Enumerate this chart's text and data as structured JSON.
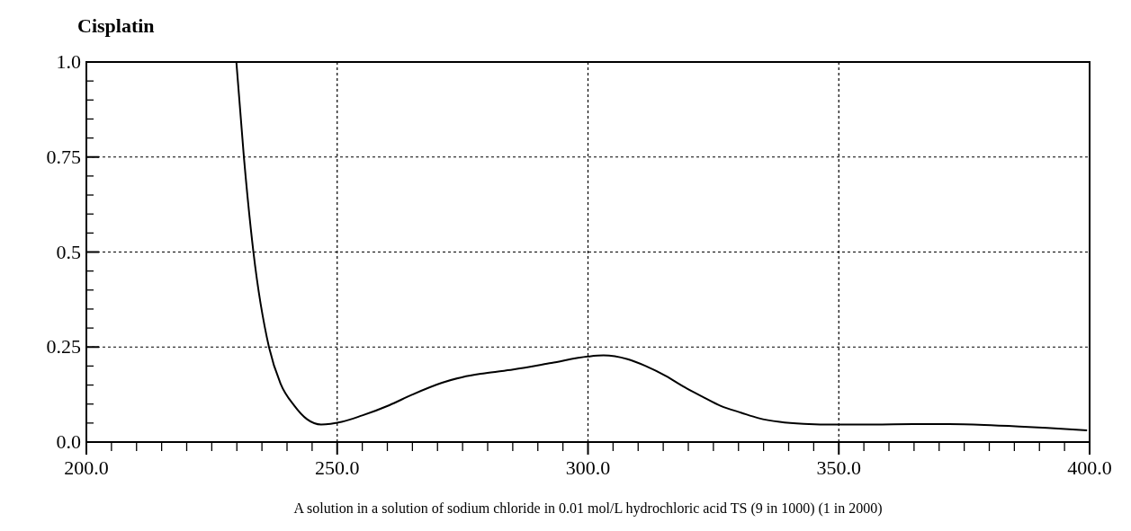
{
  "chart_data": {
    "type": "line",
    "title": "Cisplatin",
    "annotations": [
      "A solution in a solution of sodium chloride in 0.01 mol/L hydrochloric acid TS (9 in 1000) (1 in 2000)"
    ],
    "x": [
      229.9,
      231.4,
      233.3,
      236.4,
      238.7,
      241.5,
      244,
      246.8,
      250.9,
      255,
      260.4,
      265,
      270.9,
      275,
      279.4,
      285.1,
      292.7,
      300,
      303.1,
      307.9,
      311.5,
      315.5,
      319,
      323,
      326.5,
      330.6,
      334,
      338.2,
      343,
      349.6,
      357,
      364.8,
      372,
      379,
      386,
      393,
      399.5
    ],
    "series": [
      {
        "color": "#000000",
        "values": [
          1.0,
          0.75,
          0.5,
          0.25,
          0.154,
          0.095,
          0.06,
          0.046,
          0.053,
          0.07,
          0.097,
          0.125,
          0.156,
          0.171,
          0.181,
          0.191,
          0.208,
          0.225,
          0.228,
          0.218,
          0.2,
          0.174,
          0.146,
          0.118,
          0.095,
          0.077,
          0.063,
          0.053,
          0.048,
          0.046,
          0.046,
          0.047,
          0.047,
          0.045,
          0.041,
          0.036,
          0.031
        ]
      }
    ],
    "xlim": [
      200,
      400
    ],
    "ylim": [
      0,
      1
    ],
    "xticks": [
      {
        "value": 200,
        "label": "200.0"
      },
      {
        "value": 205,
        "label": null
      },
      {
        "value": 210,
        "label": null
      },
      {
        "value": 215,
        "label": null
      },
      {
        "value": 220,
        "label": null
      },
      {
        "value": 225,
        "label": null
      },
      {
        "value": 230,
        "label": null
      },
      {
        "value": 235,
        "label": null
      },
      {
        "value": 240,
        "label": null
      },
      {
        "value": 245,
        "label": null
      },
      {
        "value": 250,
        "label": "250.0"
      },
      {
        "value": 255,
        "label": null
      },
      {
        "value": 260,
        "label": null
      },
      {
        "value": 265,
        "label": null
      },
      {
        "value": 270,
        "label": null
      },
      {
        "value": 275,
        "label": null
      },
      {
        "value": 280,
        "label": null
      },
      {
        "value": 285,
        "label": null
      },
      {
        "value": 290,
        "label": null
      },
      {
        "value": 295,
        "label": null
      },
      {
        "value": 300,
        "label": "300.0"
      },
      {
        "value": 305,
        "label": null
      },
      {
        "value": 310,
        "label": null
      },
      {
        "value": 315,
        "label": null
      },
      {
        "value": 320,
        "label": null
      },
      {
        "value": 325,
        "label": null
      },
      {
        "value": 330,
        "label": null
      },
      {
        "value": 335,
        "label": null
      },
      {
        "value": 340,
        "label": null
      },
      {
        "value": 345,
        "label": null
      },
      {
        "value": 350,
        "label": "350.0"
      },
      {
        "value": 355,
        "label": null
      },
      {
        "value": 360,
        "label": null
      },
      {
        "value": 365,
        "label": null
      },
      {
        "value": 370,
        "label": null
      },
      {
        "value": 375,
        "label": null
      },
      {
        "value": 380,
        "label": null
      },
      {
        "value": 385,
        "label": null
      },
      {
        "value": 390,
        "label": null
      },
      {
        "value": 395,
        "label": null
      },
      {
        "value": 400,
        "label": "400.0"
      }
    ],
    "yticks": [
      {
        "value": 0,
        "label": "0.0"
      },
      {
        "value": 0.05,
        "label": null
      },
      {
        "value": 0.1,
        "label": null
      },
      {
        "value": 0.15,
        "label": null
      },
      {
        "value": 0.2,
        "label": null
      },
      {
        "value": 0.25,
        "label": "0.25"
      },
      {
        "value": 0.3,
        "label": null
      },
      {
        "value": 0.35,
        "label": null
      },
      {
        "value": 0.4,
        "label": null
      },
      {
        "value": 0.45,
        "label": null
      },
      {
        "value": 0.5,
        "label": "0.5"
      },
      {
        "value": 0.55,
        "label": null
      },
      {
        "value": 0.6,
        "label": null
      },
      {
        "value": 0.65,
        "label": null
      },
      {
        "value": 0.7,
        "label": null
      },
      {
        "value": 0.75,
        "label": "0.75"
      },
      {
        "value": 0.8,
        "label": null
      },
      {
        "value": 0.85,
        "label": null
      },
      {
        "value": 0.9,
        "label": null
      },
      {
        "value": 0.95,
        "label": null
      },
      {
        "value": 1,
        "label": "1.0"
      }
    ],
    "grid": true,
    "line_style": "solid",
    "marker": "none"
  }
}
